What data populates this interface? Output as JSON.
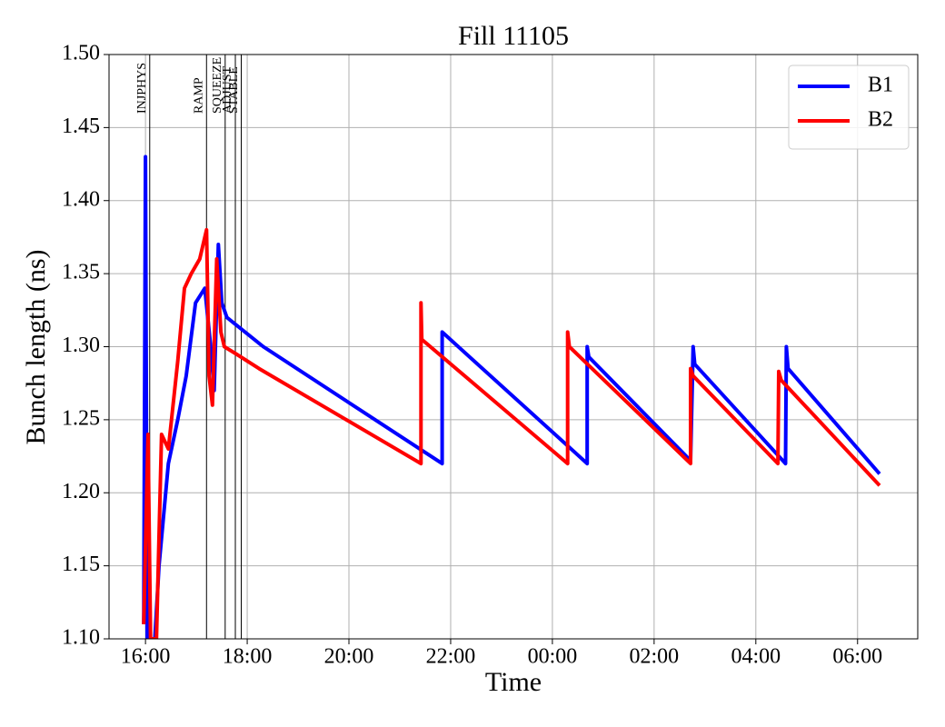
{
  "chart_data": {
    "type": "line",
    "title": "Fill 11105",
    "x_label": "Time",
    "y_label": "Bunch length (ns)",
    "grid": true,
    "legend": "upper right",
    "xlim": [
      "15:17",
      "07:11"
    ],
    "xticks": [
      "16:00",
      "18:00",
      "20:00",
      "22:00",
      "00:00",
      "02:00",
      "04:00",
      "06:00"
    ],
    "ylim": [
      1.1,
      1.5
    ],
    "yticks": [
      {
        "value": 1.1,
        "label": "1.10"
      },
      1.15,
      {
        "value": 1.2,
        "label": "1.20"
      },
      1.25,
      {
        "value": 1.3,
        "label": "1.30"
      },
      1.35,
      {
        "value": 1.4,
        "label": "1.40"
      },
      1.45,
      {
        "value": 1.5,
        "label": "1.50"
      }
    ],
    "phases": [
      {
        "name": "INJPHYS",
        "x": "16:05"
      },
      {
        "name": "RAMP",
        "x": "17:12"
      },
      {
        "name": "SQUEEZE",
        "x": "17:34"
      },
      {
        "name": "ADJUST",
        "x": "17:46"
      },
      {
        "name": "STABLE",
        "x": "17:53"
      }
    ],
    "series": [
      {
        "name": "B1",
        "color": "#0000ff",
        "x": [
          "15:58",
          "16:00",
          "16:02",
          "16:11",
          "16:16",
          "16:27",
          "16:38",
          "16:48",
          "16:59",
          "17:10",
          "17:17",
          "17:21",
          "17:26",
          "17:30",
          "17:36",
          "18:19",
          "21:50",
          "21:50",
          "00:41",
          "00:41",
          "00:43",
          "02:43",
          "02:46",
          "02:48",
          "04:35",
          "04:36",
          "04:38",
          "06:26"
        ],
        "values": [
          1.11,
          1.43,
          1.1,
          1.1,
          1.15,
          1.22,
          1.25,
          1.28,
          1.33,
          1.34,
          1.3,
          1.27,
          1.37,
          1.33,
          1.32,
          1.3,
          1.22,
          1.31,
          1.22,
          1.3,
          1.293,
          1.222,
          1.3,
          1.288,
          1.22,
          1.3,
          1.285,
          1.213
        ]
      },
      {
        "name": "B2",
        "color": "#ff0000",
        "x": [
          "15:58",
          "16:03",
          "16:06",
          "16:13",
          "16:19",
          "16:27",
          "16:38",
          "16:46",
          "16:54",
          "17:04",
          "17:12",
          "17:15",
          "17:19",
          "17:24",
          "17:29",
          "17:33",
          "17:47",
          "18:14",
          "21:25",
          "21:25",
          "21:26",
          "00:18",
          "00:18",
          "00:20",
          "02:43",
          "02:43",
          "02:46",
          "04:26",
          "04:27",
          "04:30",
          "06:26"
        ],
        "values": [
          1.11,
          1.24,
          1.1,
          1.1,
          1.24,
          1.23,
          1.29,
          1.34,
          1.35,
          1.36,
          1.38,
          1.28,
          1.26,
          1.36,
          1.31,
          1.3,
          1.295,
          1.285,
          1.22,
          1.33,
          1.305,
          1.22,
          1.31,
          1.3,
          1.22,
          1.285,
          1.28,
          1.22,
          1.283,
          1.277,
          1.205
        ]
      }
    ]
  }
}
